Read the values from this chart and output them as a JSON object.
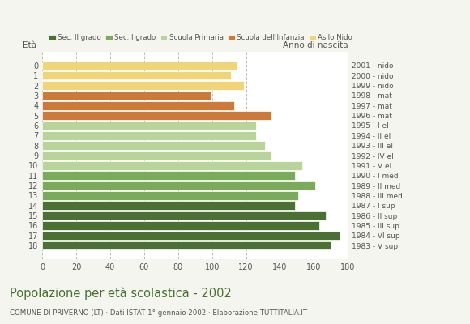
{
  "ages": [
    18,
    17,
    16,
    15,
    14,
    13,
    12,
    11,
    10,
    9,
    8,
    7,
    6,
    5,
    4,
    3,
    2,
    1,
    0
  ],
  "values": [
    170,
    175,
    163,
    167,
    149,
    151,
    161,
    149,
    153,
    135,
    131,
    126,
    126,
    135,
    113,
    99,
    119,
    111,
    115
  ],
  "right_labels": [
    "1983 - V sup",
    "1984 - VI sup",
    "1985 - III sup",
    "1986 - II sup",
    "1987 - I sup",
    "1988 - III med",
    "1989 - II med",
    "1990 - I med",
    "1991 - V el",
    "1992 - IV el",
    "1993 - III el",
    "1994 - II el",
    "1995 - I el",
    "1996 - mat",
    "1997 - mat",
    "1998 - mat",
    "1999 - nido",
    "2000 - nido",
    "2001 - nido"
  ],
  "colors": [
    "#4a7033",
    "#4a7033",
    "#4a7033",
    "#4a7033",
    "#4a7033",
    "#7aab5a",
    "#7aab5a",
    "#7aab5a",
    "#b8d49a",
    "#b8d49a",
    "#b8d49a",
    "#b8d49a",
    "#b8d49a",
    "#cc7a3a",
    "#cc7a3a",
    "#cc7a3a",
    "#f2d478",
    "#f2d478",
    "#f2d478"
  ],
  "legend_labels": [
    "Sec. II grado",
    "Sec. I grado",
    "Scuola Primaria",
    "Scuola dell'Infanzia",
    "Asilo Nido"
  ],
  "legend_colors": [
    "#4a7033",
    "#7aab5a",
    "#b8d49a",
    "#cc7a3a",
    "#f2d478"
  ],
  "title": "Popolazione per età scolastica - 2002",
  "subtitle": "COMUNE DI PRIVERNO (LT) · Dati ISTAT 1° gennaio 2002 · Elaborazione TUTTITALIA.IT",
  "xlabel_eta": "Età",
  "xlabel_anno": "Anno di nascita",
  "xlim": [
    0,
    180
  ],
  "xticks": [
    0,
    20,
    40,
    60,
    80,
    100,
    120,
    140,
    160,
    180
  ],
  "bg_color": "#f5f5f0",
  "plot_bg": "#ffffff",
  "grid_color": "#bbbbbb",
  "title_color": "#4a7033",
  "subtitle_color": "#555555",
  "text_color": "#555555"
}
